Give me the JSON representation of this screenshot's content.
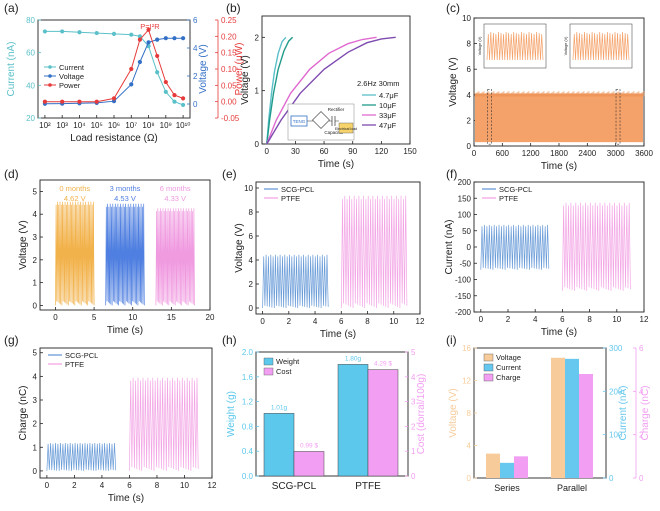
{
  "figure": {
    "panels": [
      {
        "id": "a",
        "panel_label": "(a)",
        "type": "line",
        "xlabel": "Load resistance (Ω)",
        "ylabel": "Current (nA)",
        "ylabel_right": "Voltage (V)",
        "ylabel_right2": "Power (μW)",
        "xticks": [
          "10²",
          "10³",
          "10⁴",
          "10⁵",
          "10⁶",
          "10⁷",
          "10⁸",
          "10⁹",
          "10¹⁰"
        ],
        "yticks": [
          "20",
          "40",
          "60",
          "80"
        ],
        "yticks_right": [
          "0",
          "2",
          "4",
          "6"
        ],
        "yticks_right2": [
          "-0.05",
          "0.00",
          "0.05",
          "0.10",
          "0.15",
          "0.20",
          "0.25"
        ],
        "annotation": "P=I²R",
        "legend": [
          "Current",
          "Voltage",
          "Power"
        ]
      },
      {
        "id": "b",
        "panel_label": "(b)",
        "type": "line",
        "xlabel": "Time (s)",
        "ylabel": "Voltage (V)",
        "xticks": [
          "0",
          "30",
          "60",
          "90",
          "120",
          "150"
        ],
        "yticks": [
          "0",
          "1",
          "2"
        ],
        "note": "2.6Hz 30mm",
        "legend": [
          "4.7μF",
          "10μF",
          "33μF",
          "47μF"
        ],
        "circuit_labels": [
          "TENG",
          "Rectifier",
          "Capacitor",
          "Electrical load"
        ]
      },
      {
        "id": "c",
        "panel_label": "(c)",
        "type": "line",
        "xlabel": "Time (s)",
        "ylabel": "Voltage (V)",
        "xticks": [
          "0",
          "600",
          "1200",
          "1800",
          "2400",
          "3000",
          "3600"
        ],
        "yticks": [
          "0",
          "2",
          "4",
          "6",
          "8",
          "10"
        ],
        "inset_ylabel": "Voltage (V)"
      },
      {
        "id": "d",
        "panel_label": "(d)",
        "type": "line",
        "xlabel": "Time (s)",
        "ylabel": "Voltage (V)",
        "xticks": [
          "0",
          "5",
          "10",
          "15",
          "20"
        ],
        "yticks": [
          "0",
          "1",
          "2",
          "3",
          "4",
          "5"
        ],
        "group_labels": [
          "0 months",
          "3 months",
          "6 months"
        ],
        "group_values": [
          "4.62 V",
          "4.53 V",
          "4.33 V"
        ]
      },
      {
        "id": "e",
        "panel_label": "(e)",
        "type": "line",
        "xlabel": "Time (s)",
        "ylabel": "Voltage (V)",
        "xticks": [
          "0",
          "2",
          "4",
          "6",
          "8",
          "10",
          "12"
        ],
        "yticks": [
          "0",
          "2",
          "4",
          "6",
          "8",
          "10"
        ],
        "legend": [
          "SCG-PCL",
          "PTFE"
        ]
      },
      {
        "id": "f",
        "panel_label": "(f)",
        "type": "line",
        "xlabel": "Time (s)",
        "ylabel": "Current (nA)",
        "xticks": [
          "0",
          "2",
          "4",
          "6",
          "8",
          "10",
          "12"
        ],
        "yticks": [
          "-200",
          "-150",
          "-100",
          "-50",
          "0",
          "50",
          "100",
          "150",
          "200"
        ],
        "legend": [
          "SCG-PCL",
          "PTFE"
        ]
      },
      {
        "id": "g",
        "panel_label": "(g)",
        "type": "line",
        "xlabel": "Time (s)",
        "ylabel": "Charge (nC)",
        "xticks": [
          "0",
          "2",
          "4",
          "6",
          "8",
          "10",
          "12"
        ],
        "yticks": [
          "0",
          "1",
          "2",
          "3",
          "4",
          "5"
        ],
        "legend": [
          "SCG-PCL",
          "PTFE"
        ]
      },
      {
        "id": "h",
        "panel_label": "(h)",
        "type": "bar",
        "ylabel": "Weight (g)",
        "ylabel_right": "Cost (dorral/100g)",
        "categories": [
          "SCG-PCL",
          "PTFE"
        ],
        "yticks": [
          "0.0",
          "0.4",
          "0.8",
          "1.2",
          "1.6",
          "2.0"
        ],
        "yticks_right": [
          "0",
          "1",
          "2",
          "3",
          "4",
          "5"
        ],
        "legend": [
          "Weight",
          "Cost"
        ],
        "value_labels": [
          "1.01g",
          "0.99 $",
          "1.80g",
          "4.29 $"
        ]
      },
      {
        "id": "i",
        "panel_label": "(i)",
        "type": "bar",
        "ylabel": "Voltage (V)",
        "ylabel_right": "Current (nA)",
        "ylabel_right2": "Charge (nC)",
        "categories": [
          "Series",
          "Parallel"
        ],
        "yticks": [
          "0",
          "4",
          "8",
          "12",
          "16"
        ],
        "yticks_right": [
          "0",
          "100",
          "200",
          "300"
        ],
        "yticks_right2": [
          "0",
          "2",
          "4",
          "6"
        ],
        "legend": [
          "Voltage",
          "Current",
          "Charge"
        ]
      }
    ]
  },
  "chart_data": [
    {
      "id": "a",
      "type": "line",
      "title": "",
      "xlabel": "Load resistance (Ω)",
      "xscale": "log",
      "x_log10": [
        2,
        3,
        4,
        5,
        6,
        7,
        7.5,
        8,
        8.5,
        9,
        9.5,
        10
      ],
      "series": [
        {
          "name": "Current",
          "axis": "left",
          "ylim": [
            20,
            80
          ],
          "values": [
            73,
            73,
            72.5,
            72,
            71.5,
            71,
            70,
            64,
            48,
            36,
            30,
            28
          ]
        },
        {
          "name": "Voltage",
          "axis": "right",
          "ylim": [
            -1,
            6
          ],
          "values": [
            0.02,
            0.03,
            0.05,
            0.08,
            0.2,
            1.4,
            3.0,
            4.4,
            4.6,
            4.7,
            4.7,
            4.7
          ]
        },
        {
          "name": "Power",
          "axis": "right2",
          "ylim": [
            -0.05,
            0.25
          ],
          "values": [
            0.0,
            0.0,
            0.0,
            0.0,
            0.01,
            0.1,
            0.19,
            0.22,
            0.14,
            0.06,
            0.02,
            0.01
          ]
        }
      ],
      "colors": {
        "Current": "#5bc0c9",
        "Voltage": "#3370c6",
        "Power": "#e63b3b"
      }
    },
    {
      "id": "b",
      "type": "line",
      "title": "",
      "xlabel": "Time (s)",
      "ylabel": "Voltage (V)",
      "xlim": [
        -5,
        150
      ],
      "ylim": [
        0,
        2.4
      ],
      "series": [
        {
          "name": "4.7μF",
          "x": [
            0,
            2,
            5,
            8,
            12,
            16,
            20
          ],
          "values": [
            0,
            0.45,
            0.95,
            1.35,
            1.7,
            1.92,
            2.0
          ]
        },
        {
          "name": "10μF",
          "x": [
            0,
            3,
            7,
            12,
            18,
            23,
            27
          ],
          "values": [
            0,
            0.45,
            0.95,
            1.4,
            1.75,
            1.93,
            2.0
          ]
        },
        {
          "name": "33μF",
          "x": [
            0,
            10,
            25,
            45,
            65,
            85,
            100,
            115
          ],
          "values": [
            0,
            0.45,
            0.95,
            1.4,
            1.7,
            1.88,
            1.96,
            2.0
          ]
        },
        {
          "name": "47μF",
          "x": [
            0,
            15,
            35,
            60,
            85,
            105,
            120,
            135
          ],
          "values": [
            0,
            0.45,
            0.95,
            1.4,
            1.72,
            1.9,
            1.97,
            2.0
          ]
        }
      ],
      "colors": {
        "4.7μF": "#5bc0c9",
        "10μF": "#1f9a8a",
        "33μF": "#e06ad0",
        "47μF": "#7e4bb0"
      }
    },
    {
      "id": "c",
      "type": "line",
      "title": "",
      "xlabel": "Time (s)",
      "ylabel": "Voltage (V)",
      "xlim": [
        0,
        3600
      ],
      "ylim": [
        0,
        10
      ],
      "series": [
        {
          "name": "Voltage",
          "x": [
            0,
            3600
          ],
          "min": 0.3,
          "max": 4.1
        }
      ],
      "colors": {
        "Voltage": "#f5a26a"
      }
    },
    {
      "id": "d",
      "type": "line",
      "title": "",
      "xlabel": "Time (s)",
      "ylabel": "Voltage (V)",
      "xlim": [
        -2,
        20
      ],
      "ylim": [
        -0.2,
        5.5
      ],
      "series": [
        {
          "name": "0 months",
          "x": [
            0,
            5
          ],
          "peak": 4.62
        },
        {
          "name": "3 months",
          "x": [
            6.5,
            11.5
          ],
          "peak": 4.53
        },
        {
          "name": "6 months",
          "x": [
            13,
            18
          ],
          "peak": 4.33
        }
      ],
      "colors": {
        "0 months": "#f2b24b",
        "3 months": "#4f7fe0",
        "6 months": "#f09ae0"
      }
    },
    {
      "id": "e",
      "type": "line",
      "title": "",
      "xlabel": "Time (s)",
      "ylabel": "Voltage (V)",
      "xlim": [
        -0.5,
        12
      ],
      "ylim": [
        -0.5,
        10.5
      ],
      "series": [
        {
          "name": "SCG-PCL",
          "x": [
            0,
            5
          ],
          "peak": 4.5
        },
        {
          "name": "PTFE",
          "x": [
            6,
            11
          ],
          "peak": 9.5
        }
      ],
      "colors": {
        "SCG-PCL": "#6a9cd8",
        "PTFE": "#f3a6e6"
      }
    },
    {
      "id": "f",
      "type": "line",
      "title": "",
      "xlabel": "Time (s)",
      "ylabel": "Current (nA)",
      "xlim": [
        -0.5,
        12
      ],
      "ylim": [
        -200,
        200
      ],
      "series": [
        {
          "name": "SCG-PCL",
          "x": [
            0,
            5
          ],
          "peak": 70,
          "trough": -70
        },
        {
          "name": "PTFE",
          "x": [
            6,
            11
          ],
          "peak": 140,
          "trough": -135
        }
      ],
      "colors": {
        "SCG-PCL": "#6a9cd8",
        "PTFE": "#f3a6e6"
      }
    },
    {
      "id": "g",
      "type": "line",
      "title": "",
      "xlabel": "Time (s)",
      "ylabel": "Charge (nC)",
      "xlim": [
        -0.5,
        12
      ],
      "ylim": [
        -0.3,
        5.2
      ],
      "series": [
        {
          "name": "SCG-PCL",
          "x": [
            0,
            5
          ],
          "peak": 1.2
        },
        {
          "name": "PTFE",
          "x": [
            6,
            11
          ],
          "peak": 4.0
        }
      ],
      "colors": {
        "SCG-PCL": "#6a9cd8",
        "PTFE": "#f3a6e6"
      }
    },
    {
      "id": "h",
      "type": "bar",
      "title": "",
      "categories": [
        "SCG-PCL",
        "PTFE"
      ],
      "series": [
        {
          "name": "Weight",
          "axis": "left",
          "ylim": [
            0,
            2.0
          ],
          "values": [
            1.01,
            1.8
          ]
        },
        {
          "name": "Cost",
          "axis": "right",
          "ylim": [
            0,
            5
          ],
          "values": [
            0.99,
            4.29
          ]
        }
      ],
      "colors": {
        "Weight": "#5bc8ec",
        "Cost": "#f29ef2"
      }
    },
    {
      "id": "i",
      "type": "bar",
      "title": "",
      "categories": [
        "Series",
        "Parallel"
      ],
      "series": [
        {
          "name": "Voltage",
          "axis": "left",
          "ylim": [
            0,
            16
          ],
          "values": [
            3.0,
            14.8
          ]
        },
        {
          "name": "Current",
          "axis": "right",
          "ylim": [
            0,
            300
          ],
          "values": [
            35,
            275
          ]
        },
        {
          "name": "Charge",
          "axis": "right2",
          "ylim": [
            0,
            6
          ],
          "values": [
            1.0,
            4.8
          ]
        }
      ],
      "colors": {
        "Voltage": "#f7cc9a",
        "Current": "#66c8ee",
        "Charge": "#f29ef2"
      }
    }
  ]
}
